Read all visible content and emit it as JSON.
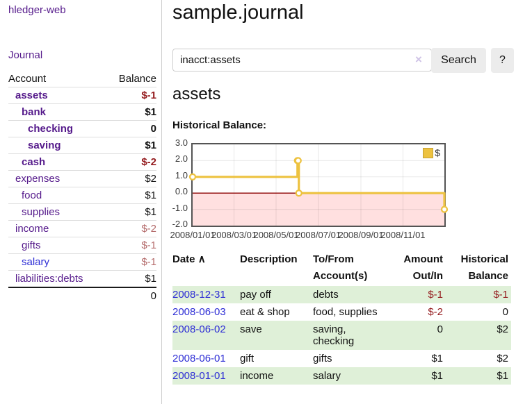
{
  "colors": {
    "link_purple": "#551a8b",
    "link_blue": "#2d2dd5",
    "negative_strong": "#941b1e",
    "negative_muted": "#b46b6b",
    "row_stripe_green": "#dff0d8",
    "series_gold": "#edc240",
    "negative_region_pink": "rgba(255,0,0,0.12)",
    "zero_line_red": "#8b0000",
    "chart_border": "#545454"
  },
  "sidebar": {
    "brand": "hledger-web",
    "journal_link": "Journal",
    "accounts_table": {
      "headers": {
        "account": "Account",
        "balance": "Balance"
      },
      "rows": [
        {
          "name": "assets",
          "indent": 0,
          "bold": true,
          "link": "purple",
          "balance": "$-1",
          "balance_style": "neg"
        },
        {
          "name": "bank",
          "indent": 1,
          "bold": true,
          "link": "purple",
          "balance": "$1",
          "balance_style": "pos"
        },
        {
          "name": "checking",
          "indent": 2,
          "bold": true,
          "link": "purple",
          "balance": "0",
          "balance_style": "pos"
        },
        {
          "name": "saving",
          "indent": 2,
          "bold": true,
          "link": "purple",
          "balance": "$1",
          "balance_style": "pos"
        },
        {
          "name": "cash",
          "indent": 1,
          "bold": true,
          "link": "purple",
          "balance": "$-2",
          "balance_style": "neg"
        },
        {
          "name": "expenses",
          "indent": 0,
          "bold": false,
          "link": "purple",
          "balance": "$2",
          "balance_style": "pos"
        },
        {
          "name": "food",
          "indent": 1,
          "bold": false,
          "link": "purple",
          "balance": "$1",
          "balance_style": "pos"
        },
        {
          "name": "supplies",
          "indent": 1,
          "bold": false,
          "link": "purple",
          "balance": "$1",
          "balance_style": "pos"
        },
        {
          "name": "income",
          "indent": 0,
          "bold": false,
          "link": "purple",
          "balance": "$-2",
          "balance_style": "neg-muted"
        },
        {
          "name": "gifts",
          "indent": 1,
          "bold": false,
          "link": "purple",
          "balance": "$-1",
          "balance_style": "neg-muted"
        },
        {
          "name": "salary",
          "indent": 1,
          "bold": false,
          "link": "blue",
          "balance": "$-1",
          "balance_style": "neg-muted"
        },
        {
          "name": "liabilities:debts",
          "indent": 0,
          "bold": false,
          "link": "purple",
          "balance": "$1",
          "balance_style": "pos"
        }
      ],
      "total": "0"
    }
  },
  "header": {
    "title": "sample.journal"
  },
  "search": {
    "value": "inacct:assets",
    "clear_icon": "×",
    "button_label": "Search",
    "help_label": "?"
  },
  "account_page": {
    "title": "assets",
    "chart_label": "Historical Balance:"
  },
  "chart_data": {
    "type": "line",
    "title": "Historical Balance",
    "step": true,
    "legend": "$",
    "legend_position": "top-right",
    "ylim": [
      -2,
      3
    ],
    "y_ticks": [
      "3.0",
      "2.0",
      "1.0",
      "0.0",
      "-1.0",
      "-2.0"
    ],
    "y_tick_values": [
      3,
      2,
      1,
      0,
      -1,
      -2
    ],
    "x_epoch": "2008-01-01",
    "x_range_days": [
      0,
      365
    ],
    "x_ticks": [
      "2008/01/01",
      "2008/03/01",
      "2008/05/01",
      "2008/07/01",
      "2008/09/01",
      "2008/11/01"
    ],
    "x_tick_days": [
      0,
      60,
      121,
      182,
      244,
      305
    ],
    "grid": true,
    "negative_region_shaded": true,
    "series": [
      {
        "name": "$",
        "color": "#edc240",
        "points": [
          [
            "2008-01-01",
            1
          ],
          [
            "2008-06-01",
            2
          ],
          [
            "2008-06-02",
            2
          ],
          [
            "2008-06-03",
            0
          ],
          [
            "2008-12-31",
            -1
          ]
        ]
      }
    ]
  },
  "register": {
    "headers": {
      "date": "Date",
      "sort_icon": "∧",
      "description": "Description",
      "accounts": "To/From\nAccount(s)",
      "amount": "Amount\nOut/In",
      "balance": "Historical\nBalance"
    },
    "rows": [
      {
        "date": "2008-12-31",
        "description": "pay off",
        "accounts": "debts",
        "amount": "$-1",
        "amount_neg": true,
        "balance": "$-1",
        "balance_neg": true,
        "stripe": true
      },
      {
        "date": "2008-06-03",
        "description": "eat & shop",
        "accounts": "food, supplies",
        "amount": "$-2",
        "amount_neg": true,
        "balance": "0",
        "balance_neg": false,
        "stripe": false
      },
      {
        "date": "2008-06-02",
        "description": "save",
        "accounts": "saving,\nchecking",
        "amount": "0",
        "amount_neg": false,
        "balance": "$2",
        "balance_neg": false,
        "stripe": true
      },
      {
        "date": "2008-06-01",
        "description": "gift",
        "accounts": "gifts",
        "amount": "$1",
        "amount_neg": false,
        "balance": "$2",
        "balance_neg": false,
        "stripe": false
      },
      {
        "date": "2008-01-01",
        "description": "income",
        "accounts": "salary",
        "amount": "$1",
        "amount_neg": false,
        "balance": "$1",
        "balance_neg": false,
        "stripe": true
      }
    ]
  }
}
